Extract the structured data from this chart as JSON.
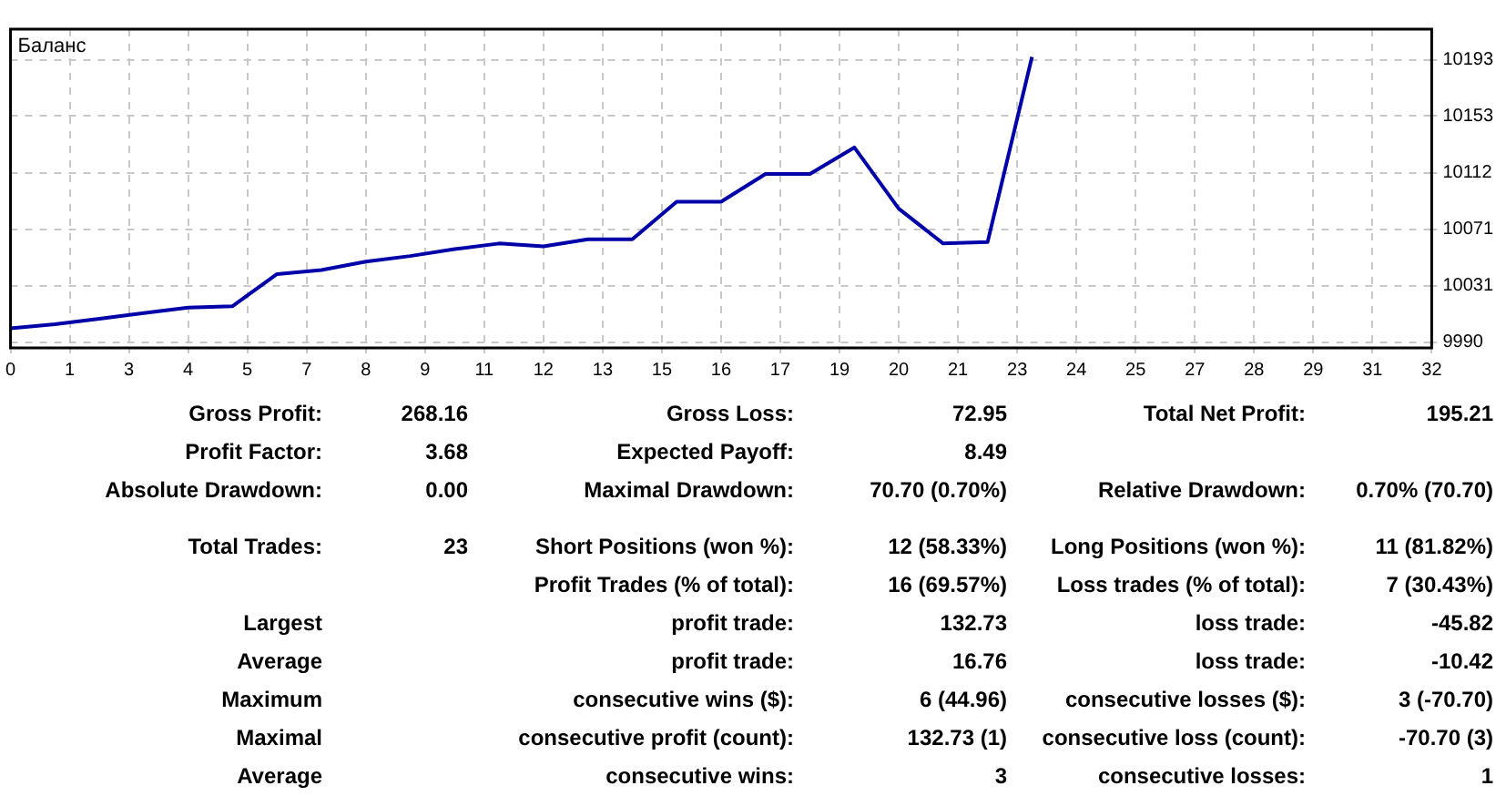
{
  "chart_data": [
    {
      "type": "line",
      "x": [
        0,
        1,
        2,
        3,
        4,
        5,
        6,
        7,
        8,
        9,
        10,
        11,
        12,
        13,
        14,
        15,
        16,
        17,
        18,
        19,
        20,
        21,
        22,
        23
      ],
      "series": [
        {
          "name": "Баланс",
          "color": "#0000a8",
          "values": [
            10000,
            10003,
            10007,
            10011,
            10015,
            10016,
            10039,
            10042,
            10048,
            10052,
            10057,
            10061,
            10059,
            10064,
            10064,
            10091,
            10091,
            10111,
            10111,
            10130,
            10086,
            10061,
            10062,
            10195
          ]
        }
      ],
      "xlim": [
        0,
        32
      ],
      "xticks": [
        0,
        {
          "value": 1.333,
          "label": "1"
        },
        {
          "value": 2.667,
          "label": "3"
        },
        4,
        {
          "value": 5.333,
          "label": "5"
        },
        {
          "value": 6.667,
          "label": "7"
        },
        8,
        {
          "value": 9.333,
          "label": "9"
        },
        {
          "value": 10.667,
          "label": "11"
        },
        12,
        {
          "value": 13.333,
          "label": "13"
        },
        {
          "value": 14.667,
          "label": "15"
        },
        16,
        {
          "value": 17.333,
          "label": "17"
        },
        {
          "value": 18.667,
          "label": "19"
        },
        20,
        {
          "value": 21.333,
          "label": "21"
        },
        {
          "value": 22.667,
          "label": "23"
        },
        24,
        {
          "value": 25.333,
          "label": "25"
        },
        {
          "value": 26.667,
          "label": "27"
        },
        28,
        {
          "value": 29.333,
          "label": "29"
        },
        {
          "value": 30.667,
          "label": "31"
        },
        32
      ],
      "ylim": [
        9986,
        10215
      ],
      "yticks": [
        9990,
        {
          "value": 10030.6,
          "label": "10031"
        },
        {
          "value": 10071.2,
          "label": "10071"
        },
        {
          "value": 10111.8,
          "label": "10112"
        },
        {
          "value": 10152.6,
          "label": "10153"
        },
        10193
      ],
      "grid": true,
      "legend": "top left",
      "marker": "none",
      "line_style": "solid"
    },
    {
      "type": "other",
      "annotations": [
        "Gross Profit:",
        "268.16",
        "Gross Loss:",
        "72.95",
        "Total Net Profit:",
        "195.21",
        "Profit Factor:",
        "3.68",
        "Expected Payoff:",
        "8.49",
        null,
        null,
        "Absolute Drawdown:",
        "0.00",
        "Maximal Drawdown:",
        "70.70 (0.70%)",
        "Relative Drawdown:",
        "0.70% (70.70)",
        "Total Trades:",
        "23",
        "Short Positions (won %):",
        "12 (58.33%)",
        "Long Positions (won %):",
        "11 (81.82%)",
        null,
        null,
        "Profit Trades (% of total):",
        "16 (69.57%)",
        "Loss trades (% of total):",
        "7 (30.43%)",
        "Largest",
        null,
        "profit trade:",
        "132.73",
        "loss trade:",
        "-45.82",
        "Average",
        null,
        "profit trade:",
        "16.76",
        "loss trade:",
        "-10.42",
        "Maximum",
        null,
        "consecutive wins ($):",
        "6 (44.96)",
        "consecutive losses ($):",
        "3 (-70.70)",
        "Maximal",
        null,
        "consecutive profit (count):",
        "132.73 (1)",
        "consecutive loss (count):",
        "-70.70 (3)",
        "Average",
        null,
        "consecutive wins:",
        "3",
        "consecutive losses:",
        "1"
      ]
    }
  ]
}
